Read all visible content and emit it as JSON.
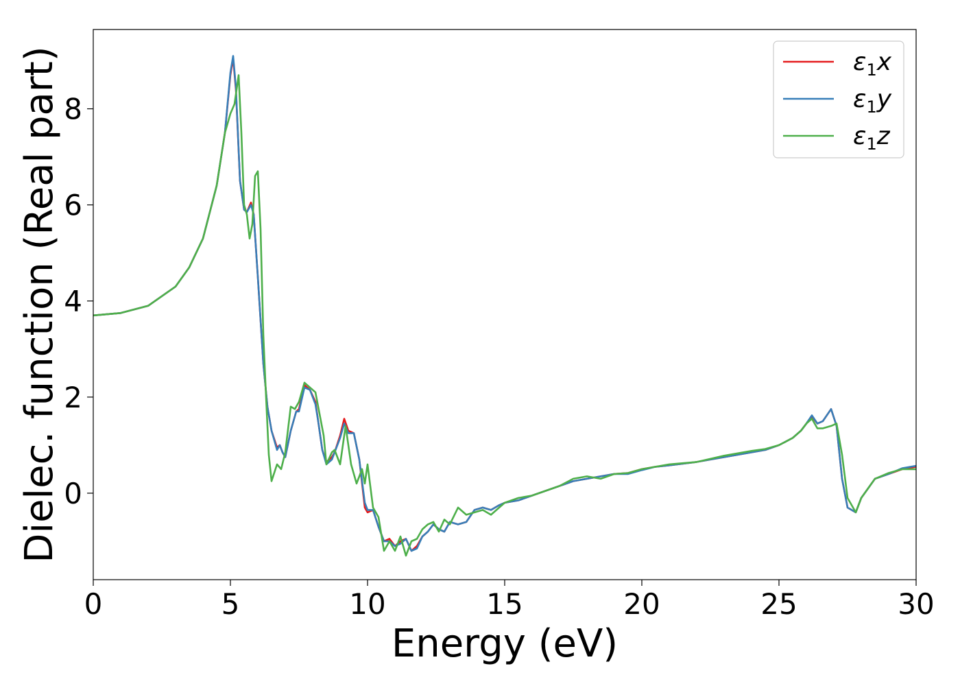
{
  "chart_data": {
    "type": "line",
    "xlabel": "Energy (eV)",
    "ylabel": "Dielec. function (Real part)",
    "xlim": [
      0,
      30
    ],
    "ylim": [
      -1.8,
      9.65
    ],
    "xticks": [
      "0",
      "5",
      "10",
      "15",
      "20",
      "25",
      "30"
    ],
    "yticks": [
      "0",
      "2",
      "4",
      "6",
      "8"
    ],
    "grid": false,
    "legend_position": "top-right",
    "series": [
      {
        "name": "ε₁x",
        "legend": {
          "symbol": "ε",
          "sub": "1",
          "var": "x"
        },
        "color": "#e41a1c",
        "x": [
          0,
          1,
          2,
          3,
          3.5,
          4,
          4.5,
          4.8,
          5.0,
          5.1,
          5.2,
          5.35,
          5.5,
          5.6,
          5.75,
          5.85,
          6.0,
          6.2,
          6.35,
          6.5,
          6.7,
          6.8,
          6.9,
          7.0,
          7.2,
          7.4,
          7.5,
          7.7,
          7.9,
          8.1,
          8.2,
          8.35,
          8.5,
          8.7,
          8.8,
          9.0,
          9.15,
          9.3,
          9.5,
          9.7,
          9.9,
          10.0,
          10.2,
          10.4,
          10.6,
          10.8,
          11.0,
          11.2,
          11.4,
          11.6,
          11.8,
          12.0,
          12.2,
          12.4,
          12.6,
          12.8,
          13.0,
          13.3,
          13.6,
          13.9,
          14.2,
          14.5,
          14.8,
          15.0,
          15.5,
          16.0,
          16.5,
          17.0,
          17.5,
          18.0,
          18.5,
          19.0,
          19.5,
          20.0,
          20.5,
          21.0,
          22.0,
          23.0,
          24.0,
          24.5,
          25.0,
          25.5,
          25.8,
          26.0,
          26.2,
          26.4,
          26.6,
          26.9,
          27.1,
          27.3,
          27.5,
          27.8,
          28.0,
          28.5,
          29.0,
          29.5,
          30.0
        ],
        "y": [
          3.7,
          3.75,
          3.9,
          4.3,
          4.7,
          5.3,
          6.4,
          7.5,
          8.7,
          9.05,
          8.4,
          6.5,
          5.9,
          5.85,
          6.05,
          5.8,
          4.5,
          2.7,
          1.8,
          1.3,
          0.95,
          1.0,
          0.85,
          0.75,
          1.3,
          1.7,
          1.75,
          2.25,
          2.15,
          1.9,
          1.5,
          0.9,
          0.65,
          0.75,
          0.85,
          1.2,
          1.55,
          1.3,
          1.25,
          0.7,
          -0.3,
          -0.4,
          -0.35,
          -0.7,
          -1.0,
          -0.95,
          -1.1,
          -1.0,
          -0.95,
          -1.2,
          -1.1,
          -0.9,
          -0.8,
          -0.65,
          -0.75,
          -0.8,
          -0.6,
          -0.65,
          -0.6,
          -0.35,
          -0.3,
          -0.35,
          -0.25,
          -0.2,
          -0.15,
          -0.05,
          0.05,
          0.15,
          0.25,
          0.3,
          0.35,
          0.4,
          0.42,
          0.5,
          0.55,
          0.58,
          0.65,
          0.75,
          0.85,
          0.9,
          1.0,
          1.15,
          1.3,
          1.45,
          1.6,
          1.45,
          1.5,
          1.75,
          1.4,
          0.3,
          -0.3,
          -0.4,
          -0.1,
          0.3,
          0.4,
          0.5,
          0.55
        ]
      },
      {
        "name": "ε₁y",
        "legend": {
          "symbol": "ε",
          "sub": "1",
          "var": "y"
        },
        "color": "#377eb8",
        "x": [
          0,
          1,
          2,
          3,
          3.5,
          4,
          4.5,
          4.8,
          5.0,
          5.1,
          5.2,
          5.35,
          5.5,
          5.6,
          5.75,
          5.85,
          6.0,
          6.2,
          6.35,
          6.5,
          6.7,
          6.8,
          6.9,
          7.0,
          7.2,
          7.4,
          7.5,
          7.7,
          7.9,
          8.1,
          8.2,
          8.35,
          8.5,
          8.7,
          8.8,
          9.0,
          9.15,
          9.3,
          9.5,
          9.7,
          9.9,
          10.0,
          10.2,
          10.4,
          10.6,
          10.8,
          11.0,
          11.2,
          11.4,
          11.6,
          11.8,
          12.0,
          12.2,
          12.4,
          12.6,
          12.8,
          13.0,
          13.3,
          13.6,
          13.9,
          14.2,
          14.5,
          14.8,
          15.0,
          15.5,
          16.0,
          16.5,
          17.0,
          17.5,
          18.0,
          18.5,
          19.0,
          19.5,
          20.0,
          20.5,
          21.0,
          22.0,
          23.0,
          24.0,
          24.5,
          25.0,
          25.5,
          25.8,
          26.0,
          26.2,
          26.4,
          26.6,
          26.9,
          27.1,
          27.3,
          27.5,
          27.8,
          28.0,
          28.5,
          29.0,
          29.5,
          30.0
        ],
        "y": [
          3.7,
          3.75,
          3.9,
          4.3,
          4.7,
          5.3,
          6.4,
          7.5,
          8.75,
          9.1,
          8.45,
          6.5,
          5.9,
          5.85,
          6.0,
          5.8,
          4.5,
          2.7,
          1.8,
          1.3,
          0.9,
          1.0,
          0.85,
          0.75,
          1.3,
          1.7,
          1.7,
          2.2,
          2.15,
          1.85,
          1.5,
          0.9,
          0.6,
          0.7,
          0.85,
          1.15,
          1.45,
          1.25,
          1.25,
          0.7,
          -0.2,
          -0.35,
          -0.35,
          -0.7,
          -1.0,
          -1.0,
          -1.1,
          -1.05,
          -0.95,
          -1.2,
          -1.15,
          -0.9,
          -0.8,
          -0.65,
          -0.75,
          -0.8,
          -0.6,
          -0.65,
          -0.6,
          -0.35,
          -0.3,
          -0.35,
          -0.25,
          -0.2,
          -0.15,
          -0.05,
          0.05,
          0.15,
          0.25,
          0.3,
          0.35,
          0.4,
          0.4,
          0.48,
          0.55,
          0.58,
          0.65,
          0.75,
          0.85,
          0.9,
          1.0,
          1.15,
          1.3,
          1.45,
          1.62,
          1.45,
          1.5,
          1.75,
          1.4,
          0.3,
          -0.3,
          -0.4,
          -0.1,
          0.3,
          0.4,
          0.52,
          0.57
        ]
      },
      {
        "name": "ε₁z",
        "legend": {
          "symbol": "ε",
          "sub": "1",
          "var": "z"
        },
        "color": "#4daf4a",
        "x": [
          0,
          1,
          2,
          3,
          3.5,
          4,
          4.5,
          4.8,
          5.0,
          5.15,
          5.3,
          5.4,
          5.5,
          5.6,
          5.7,
          5.8,
          5.9,
          6.0,
          6.1,
          6.2,
          6.3,
          6.4,
          6.5,
          6.7,
          6.85,
          7.0,
          7.2,
          7.35,
          7.5,
          7.7,
          7.9,
          8.1,
          8.2,
          8.4,
          8.5,
          8.7,
          8.8,
          9.0,
          9.2,
          9.4,
          9.6,
          9.8,
          9.9,
          10.0,
          10.2,
          10.4,
          10.6,
          10.8,
          11.0,
          11.2,
          11.4,
          11.6,
          11.8,
          12.0,
          12.2,
          12.4,
          12.6,
          12.8,
          13.0,
          13.3,
          13.6,
          13.9,
          14.2,
          14.5,
          14.8,
          15.0,
          15.5,
          16.0,
          16.5,
          17.0,
          17.5,
          18.0,
          18.5,
          19.0,
          19.5,
          20.0,
          20.5,
          21.0,
          22.0,
          23.0,
          24.0,
          24.5,
          25.0,
          25.5,
          25.8,
          26.0,
          26.2,
          26.4,
          26.6,
          26.9,
          27.1,
          27.3,
          27.5,
          27.8,
          28.0,
          28.5,
          29.0,
          29.5,
          30.0
        ],
        "y": [
          3.7,
          3.75,
          3.9,
          4.3,
          4.7,
          5.3,
          6.4,
          7.5,
          7.9,
          8.1,
          8.7,
          7.5,
          6.0,
          5.8,
          5.3,
          5.6,
          6.6,
          6.7,
          5.5,
          3.3,
          2.0,
          0.8,
          0.25,
          0.6,
          0.5,
          0.85,
          1.8,
          1.75,
          1.9,
          2.3,
          2.2,
          2.1,
          1.8,
          1.2,
          0.6,
          0.85,
          0.9,
          0.6,
          1.4,
          0.6,
          0.2,
          0.5,
          0.2,
          0.6,
          -0.3,
          -0.5,
          -1.2,
          -1.0,
          -1.2,
          -0.9,
          -1.3,
          -1.0,
          -0.95,
          -0.75,
          -0.65,
          -0.6,
          -0.8,
          -0.55,
          -0.65,
          -0.3,
          -0.45,
          -0.4,
          -0.35,
          -0.45,
          -0.3,
          -0.2,
          -0.1,
          -0.05,
          0.05,
          0.15,
          0.3,
          0.35,
          0.3,
          0.4,
          0.42,
          0.5,
          0.55,
          0.6,
          0.65,
          0.78,
          0.88,
          0.92,
          1.0,
          1.15,
          1.3,
          1.45,
          1.55,
          1.35,
          1.35,
          1.4,
          1.45,
          0.8,
          -0.1,
          -0.4,
          -0.1,
          0.3,
          0.42,
          0.5,
          0.5
        ]
      }
    ]
  }
}
